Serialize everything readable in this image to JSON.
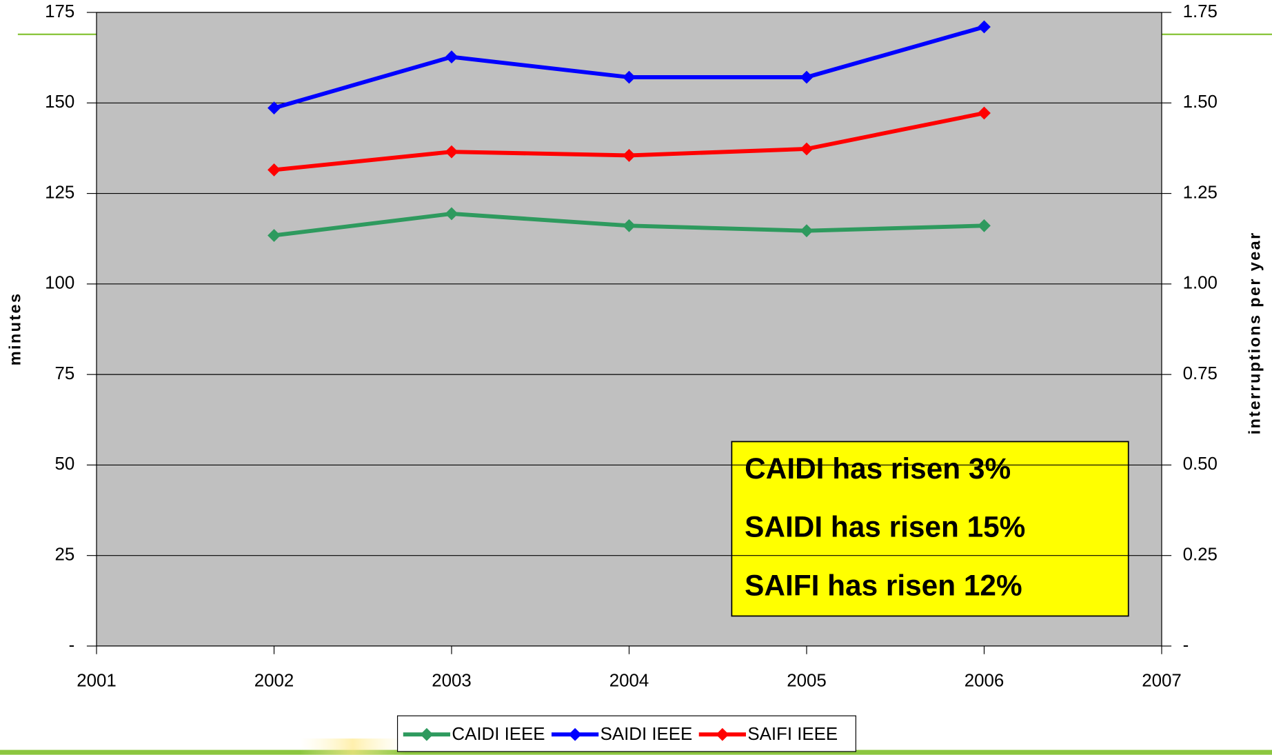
{
  "chart_data": {
    "type": "line",
    "x": [
      2002,
      2003,
      2004,
      2005,
      2006
    ],
    "xlim": [
      2001,
      2007
    ],
    "xticks": [
      2001,
      2002,
      2003,
      2004,
      2005,
      2006,
      2007
    ],
    "ylim": [
      0,
      175
    ],
    "yticks": [
      {
        "value": 0,
        "label": "-"
      },
      25,
      50,
      75,
      100,
      125,
      150,
      175
    ],
    "y2lim": [
      0,
      1.75
    ],
    "y2ticks": [
      {
        "value": 0,
        "label": "-"
      },
      0.25,
      {
        "value": 0.5,
        "label": "0.50"
      },
      0.75,
      {
        "value": 1,
        "label": "1.00"
      },
      1.25,
      {
        "value": 1.5,
        "label": "1.50"
      },
      1.75
    ],
    "ylabel": "minutes",
    "y2label": "interruptions  per year",
    "grid": true,
    "legend": "bottom",
    "series": [
      {
        "name": "CAIDI IEEE",
        "color": "#2e9a5e",
        "values": [
          113.4,
          119.4,
          116.1,
          114.7,
          116.1
        ]
      },
      {
        "name": "SAIDI IEEE",
        "color": "#0000ff",
        "values": [
          148.6,
          162.7,
          157.1,
          157.1,
          171.0
        ]
      },
      {
        "name": "SAIFI IEEE",
        "color": "#ff0000",
        "axis": "y2",
        "values": [
          1.315,
          1.365,
          1.355,
          1.373,
          1.472
        ]
      }
    ],
    "annotations": [
      "CAIDI has risen 3%",
      "SAIDI has risen 15%",
      "SAIFI has risen 12%"
    ]
  }
}
